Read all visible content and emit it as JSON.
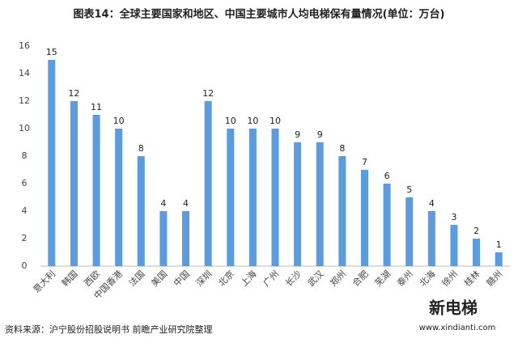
{
  "chart_data": {
    "type": "bar",
    "title": "图表14：全球主要国家和地区、中国主要城市人均电梯保有量情况(单位：万台)",
    "source": "资料来源：沪宁股份招股说明书 前瞻产业研究院整理",
    "logo": "新电梯",
    "logo_url": "www.xindianti.com",
    "categories": [
      "意大利",
      "韩国",
      "西欧",
      "中国香港",
      "法国",
      "美国",
      "中国",
      "深圳",
      "北京",
      "上海",
      "广州",
      "长沙",
      "武汉",
      "郑州",
      "合肥",
      "芜湖",
      "泰州",
      "北海",
      "徐州",
      "桂林",
      "赣州"
    ],
    "values": [
      15,
      12,
      11,
      10,
      8,
      4,
      4,
      12,
      10,
      10,
      10,
      9,
      9,
      8,
      7,
      6,
      5,
      4,
      3,
      2,
      1
    ],
    "color": "#5b9be0",
    "ylim": [
      0,
      16
    ],
    "yticks": [
      0,
      2,
      4,
      6,
      8,
      10,
      12,
      14,
      16
    ],
    "grid": false
  }
}
